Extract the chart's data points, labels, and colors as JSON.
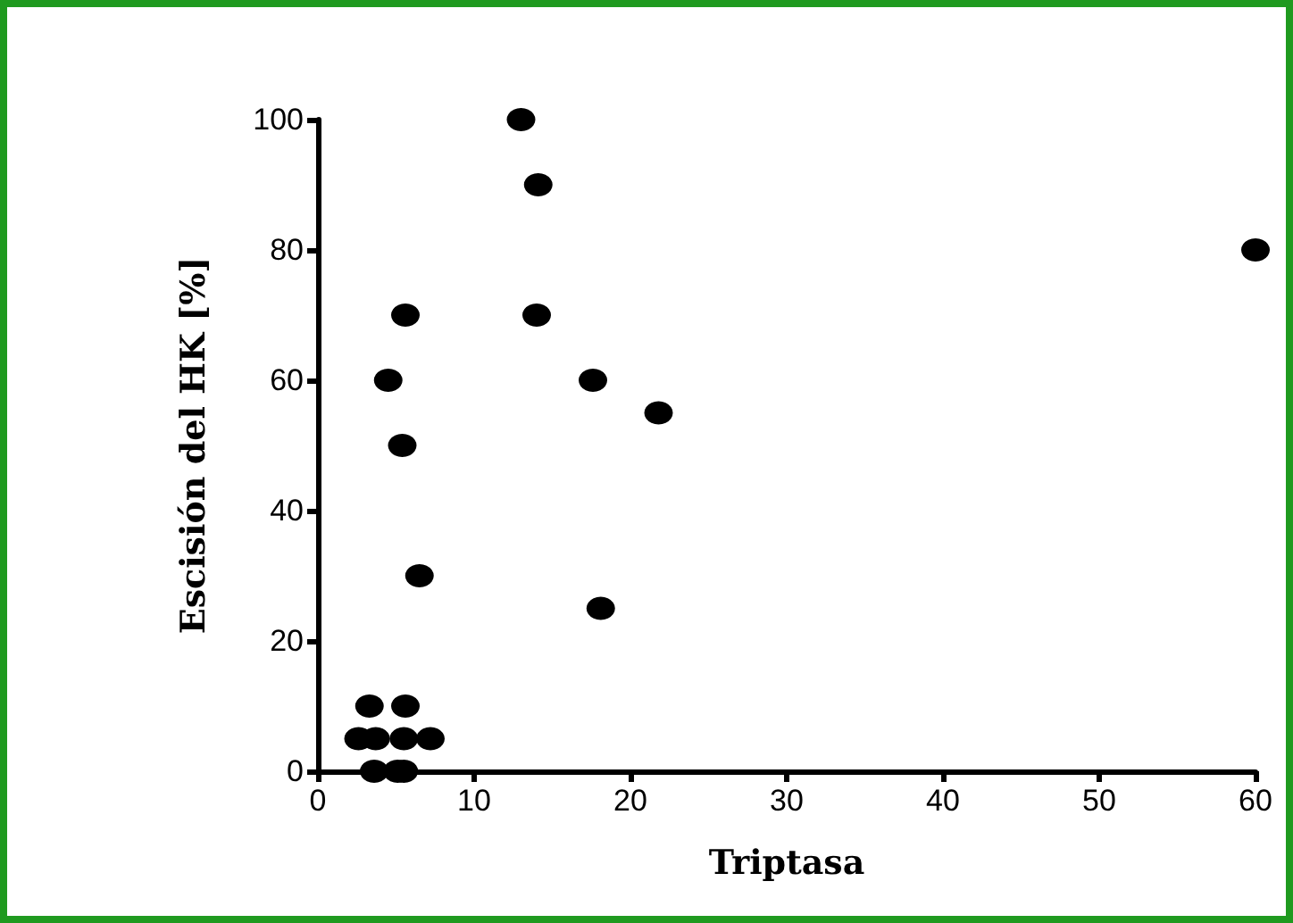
{
  "chart_data": {
    "type": "scatter",
    "xlabel": "Triptasa",
    "ylabel": "Escisión del HK [%]",
    "x": [
      13.0,
      14.1,
      14.0,
      17.6,
      21.8,
      18.1,
      4.5,
      5.6,
      5.4,
      6.5,
      60,
      3.3,
      5.6,
      2.6,
      3.7,
      5.5,
      7.2,
      3.6,
      5.1,
      5.5
    ],
    "values": [
      100,
      90,
      70,
      60,
      55,
      25,
      60,
      70,
      50,
      30,
      80,
      10,
      10,
      5,
      5,
      5,
      5,
      0,
      0,
      0
    ],
    "color": "#000000",
    "marker": "circle",
    "grid": false,
    "xlim": [
      0,
      60
    ],
    "xticks": [
      0,
      10,
      20,
      30,
      40,
      50,
      60
    ],
    "ylim": [
      0,
      100
    ],
    "yticks": [
      0,
      20,
      40,
      60,
      80,
      100
    ]
  }
}
